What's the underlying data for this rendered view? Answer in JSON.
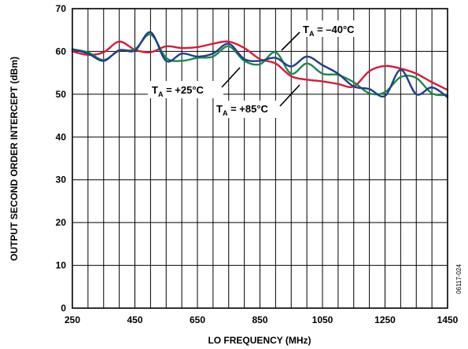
{
  "chart_data": {
    "type": "line",
    "xlabel": "LO FREQUENCY (MHz)",
    "ylabel": "OUTPUT SECOND ORDER INTERCEPT (dBm)",
    "xlim": [
      250,
      1450
    ],
    "ylim": [
      0,
      70
    ],
    "x_ticks": [
      "250",
      "450",
      "650",
      "850",
      "1050",
      "1250",
      "1450"
    ],
    "y_ticks": [
      "0",
      "10",
      "20",
      "30",
      "40",
      "50",
      "60",
      "70"
    ],
    "grid": true,
    "figure_code": "06117-024",
    "annotations": [
      {
        "main": "T",
        "sub": "A",
        "rest": " = –40°C",
        "series": "T_A = –40°C"
      },
      {
        "main": "T",
        "sub": "A",
        "rest": " = +25°C",
        "series": "T_A = +25°C"
      },
      {
        "main": "T",
        "sub": "A",
        "rest": " = +85°C",
        "series": "T_A = +85°C"
      }
    ],
    "series": [
      {
        "name": "T_A = –40°C",
        "color": "#1f3f8f",
        "x": [
          250,
          300,
          350,
          400,
          450,
          500,
          550,
          600,
          650,
          700,
          750,
          800,
          850,
          900,
          950,
          1000,
          1050,
          1100,
          1150,
          1200,
          1250,
          1300,
          1350,
          1400,
          1450
        ],
        "y": [
          60.5,
          59.5,
          57.8,
          60.3,
          60.2,
          64.5,
          57.8,
          59.5,
          58.8,
          59.5,
          61.8,
          58.2,
          57.8,
          58.5,
          56.5,
          58.8,
          56.8,
          54.8,
          51.8,
          51.2,
          49.6,
          55.7,
          50.0,
          51.6,
          49.3
        ]
      },
      {
        "name": "T_A = +25°C",
        "color": "#1a8a4a",
        "x": [
          250,
          300,
          350,
          400,
          450,
          500,
          550,
          600,
          650,
          700,
          750,
          800,
          850,
          900,
          950,
          1000,
          1050,
          1100,
          1150,
          1200,
          1250,
          1300,
          1350,
          1400,
          1450
        ],
        "y": [
          60.5,
          59.8,
          58.0,
          60.2,
          60.5,
          64.0,
          58.5,
          57.8,
          58.5,
          58.8,
          61.2,
          57.8,
          57.0,
          59.8,
          54.8,
          57.2,
          54.8,
          54.5,
          52.8,
          50.2,
          50.5,
          54.0,
          53.8,
          50.2,
          49.8
        ]
      },
      {
        "name": "T_A = +85°C",
        "color": "#d81b3a",
        "x": [
          250,
          300,
          350,
          400,
          450,
          500,
          550,
          600,
          650,
          700,
          750,
          800,
          850,
          900,
          950,
          1000,
          1050,
          1100,
          1150,
          1200,
          1250,
          1300,
          1350,
          1400,
          1450
        ],
        "y": [
          60.0,
          59.2,
          59.8,
          62.3,
          60.4,
          59.8,
          61.2,
          60.8,
          61.0,
          61.8,
          62.3,
          60.8,
          58.2,
          57.2,
          54.2,
          53.4,
          53.0,
          52.4,
          51.8,
          55.4,
          56.6,
          56.0,
          54.8,
          52.8,
          51.0
        ]
      }
    ]
  }
}
